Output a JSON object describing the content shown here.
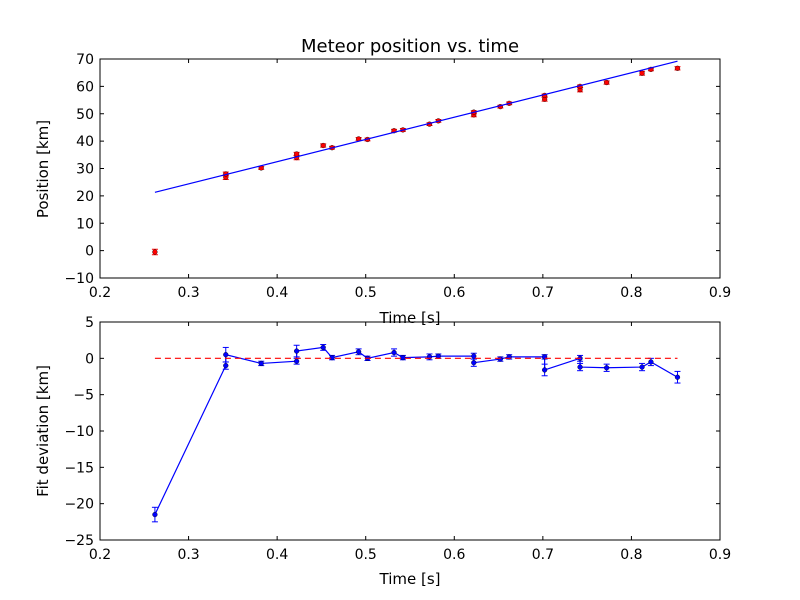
{
  "chart_data": [
    {
      "type": "scatter",
      "title": "Meteor position vs. time",
      "xlabel": "Time [s]",
      "ylabel": "Position [km]",
      "xlim": [
        0.2,
        0.9
      ],
      "ylim": [
        -10,
        70
      ],
      "xticks": [
        "0.2",
        "0.3",
        "0.4",
        "0.5",
        "0.6",
        "0.7",
        "0.8",
        "0.9"
      ],
      "yticks": [
        "−10",
        "0",
        "10",
        "20",
        "30",
        "40",
        "50",
        "60",
        "70"
      ],
      "xtick_values": [
        0.2,
        0.3,
        0.4,
        0.5,
        0.6,
        0.7,
        0.8,
        0.9
      ],
      "ytick_values": [
        -10,
        0,
        10,
        20,
        30,
        40,
        50,
        60,
        70
      ],
      "series": [
        {
          "type": "scatter",
          "color": "#ff0000",
          "marker": "circle",
          "error_bars": true,
          "x": [
            0.262,
            0.342,
            0.342,
            0.382,
            0.422,
            0.422,
            0.452,
            0.462,
            0.492,
            0.502,
            0.532,
            0.542,
            0.572,
            0.582,
            0.622,
            0.622,
            0.652,
            0.662,
            0.702,
            0.702,
            0.742,
            0.742,
            0.772,
            0.812,
            0.822,
            0.852
          ],
          "y": [
            -0.5,
            26.8,
            28.0,
            30.2,
            34.0,
            35.3,
            38.4,
            37.6,
            40.8,
            40.6,
            43.8,
            44.1,
            46.2,
            47.4,
            49.6,
            50.6,
            52.6,
            53.8,
            55.3,
            56.7,
            58.8,
            60.0,
            61.4,
            64.8,
            66.2,
            66.6
          ],
          "err": [
            1.0,
            0.8,
            0.7,
            0.5,
            0.8,
            0.6,
            0.6,
            0.5,
            0.5,
            0.5,
            0.5,
            0.5,
            0.5,
            0.5,
            0.7,
            0.5,
            0.5,
            0.5,
            0.7,
            0.5,
            0.8,
            0.5,
            0.6,
            0.7,
            0.5,
            0.6
          ]
        },
        {
          "type": "line",
          "color": "#0000ff",
          "x": [
            0.262,
            0.852
          ],
          "y": [
            21.3,
            69.2
          ]
        }
      ]
    },
    {
      "type": "line",
      "title": "",
      "xlabel": "Time [s]",
      "ylabel": "Fit deviation [km]",
      "xlim": [
        0.2,
        0.9
      ],
      "ylim": [
        -25,
        5
      ],
      "xticks": [
        "0.2",
        "0.3",
        "0.4",
        "0.5",
        "0.6",
        "0.7",
        "0.8",
        "0.9"
      ],
      "yticks": [
        "−25",
        "−20",
        "−15",
        "−10",
        "−5",
        "0",
        "5"
      ],
      "xtick_values": [
        0.2,
        0.3,
        0.4,
        0.5,
        0.6,
        0.7,
        0.8,
        0.9
      ],
      "ytick_values": [
        -25,
        -20,
        -15,
        -10,
        -5,
        0,
        5
      ],
      "series": [
        {
          "type": "line",
          "color": "#0000ff",
          "marker": "circle",
          "error_bars": true,
          "x": [
            0.262,
            0.342,
            0.342,
            0.382,
            0.422,
            0.422,
            0.452,
            0.462,
            0.492,
            0.502,
            0.532,
            0.542,
            0.572,
            0.582,
            0.622,
            0.622,
            0.652,
            0.662,
            0.702,
            0.702,
            0.742,
            0.742,
            0.772,
            0.812,
            0.822,
            0.852
          ],
          "y": [
            -21.5,
            -1.0,
            0.5,
            -0.7,
            -0.4,
            1.0,
            1.5,
            0.1,
            0.9,
            0.0,
            0.8,
            0.1,
            0.2,
            0.3,
            0.3,
            -0.6,
            -0.1,
            0.2,
            0.2,
            -1.6,
            0.0,
            -1.2,
            -1.3,
            -1.2,
            -0.5,
            -2.6
          ]
        },
        {
          "type": "line",
          "color": "#ff0000",
          "dashed": true,
          "x": [
            0.262,
            0.852
          ],
          "y": [
            0,
            0
          ]
        }
      ],
      "err": [
        1.0,
        0.5,
        1.0,
        0.3,
        0.4,
        0.8,
        0.4,
        0.3,
        0.4,
        0.3,
        0.5,
        0.3,
        0.4,
        0.3,
        0.4,
        0.5,
        0.3,
        0.3,
        0.3,
        0.8,
        0.4,
        0.5,
        0.5,
        0.5,
        0.5,
        0.8
      ]
    }
  ]
}
